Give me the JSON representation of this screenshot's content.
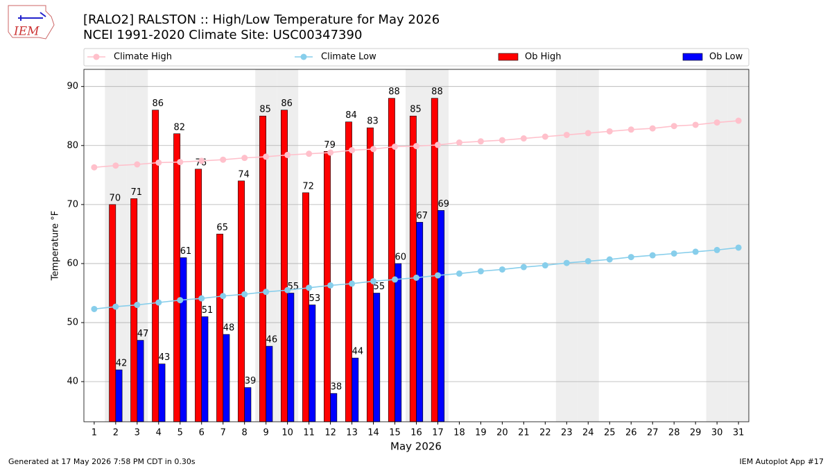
{
  "chart_data": {
    "type": "bar",
    "title": "[RALO2] RALSTON :: High/Low Temperature for May 2026",
    "subtitle": "NCEI 1991-2020 Climate Site: USC00347390",
    "xlabel": "May 2026",
    "ylabel": "Temperature °F",
    "logo": "IEM",
    "footer_left": "Generated at 17 May 2026 7:58 PM CDT in 0.30s",
    "footer_right": "IEM Autoplot App #17",
    "x": [
      1,
      2,
      3,
      4,
      5,
      6,
      7,
      8,
      9,
      10,
      11,
      12,
      13,
      14,
      15,
      16,
      17,
      18,
      19,
      20,
      21,
      22,
      23,
      24,
      25,
      26,
      27,
      28,
      29,
      30,
      31
    ],
    "xlim": [
      0.52,
      31.48
    ],
    "ylim": [
      33.2,
      92.9
    ],
    "yticks": [
      40,
      50,
      60,
      70,
      80,
      90
    ],
    "grid": true,
    "shaded_days": [
      2,
      3,
      9,
      10,
      16,
      17,
      23,
      24,
      30,
      31
    ],
    "series": [
      {
        "name": "Climate High",
        "type": "line",
        "color": "#ffc0cb",
        "values": [
          76.3,
          76.6,
          76.8,
          77.1,
          77.2,
          77.4,
          77.6,
          77.9,
          78.1,
          78.4,
          78.6,
          78.8,
          79.2,
          79.4,
          79.8,
          79.9,
          80.1,
          80.5,
          80.7,
          80.9,
          81.2,
          81.5,
          81.8,
          82.1,
          82.4,
          82.7,
          82.9,
          83.3,
          83.5,
          83.9,
          84.2
        ]
      },
      {
        "name": "Climate Low",
        "type": "line",
        "color": "#87ceeb",
        "values": [
          52.3,
          52.7,
          53.0,
          53.4,
          53.8,
          54.1,
          54.5,
          54.8,
          55.2,
          55.5,
          55.9,
          56.3,
          56.6,
          57.0,
          57.3,
          57.6,
          58.0,
          58.3,
          58.7,
          59.0,
          59.4,
          59.7,
          60.1,
          60.4,
          60.7,
          61.1,
          61.4,
          61.7,
          62.0,
          62.3,
          62.7
        ]
      },
      {
        "name": "Ob High",
        "type": "bar",
        "color": "#ff0000",
        "values": [
          null,
          70,
          71,
          86,
          82,
          76,
          65,
          74,
          85,
          86,
          72,
          79,
          84,
          83,
          88,
          85,
          88,
          null,
          null,
          null,
          null,
          null,
          null,
          null,
          null,
          null,
          null,
          null,
          null,
          null,
          null
        ]
      },
      {
        "name": "Ob Low",
        "type": "bar",
        "color": "#0000ff",
        "values": [
          null,
          42,
          47,
          43,
          61,
          51,
          48,
          39,
          46,
          55,
          53,
          38,
          44,
          55,
          60,
          67,
          69,
          null,
          null,
          null,
          null,
          null,
          null,
          null,
          null,
          null,
          null,
          null,
          null,
          null,
          null
        ]
      }
    ]
  }
}
